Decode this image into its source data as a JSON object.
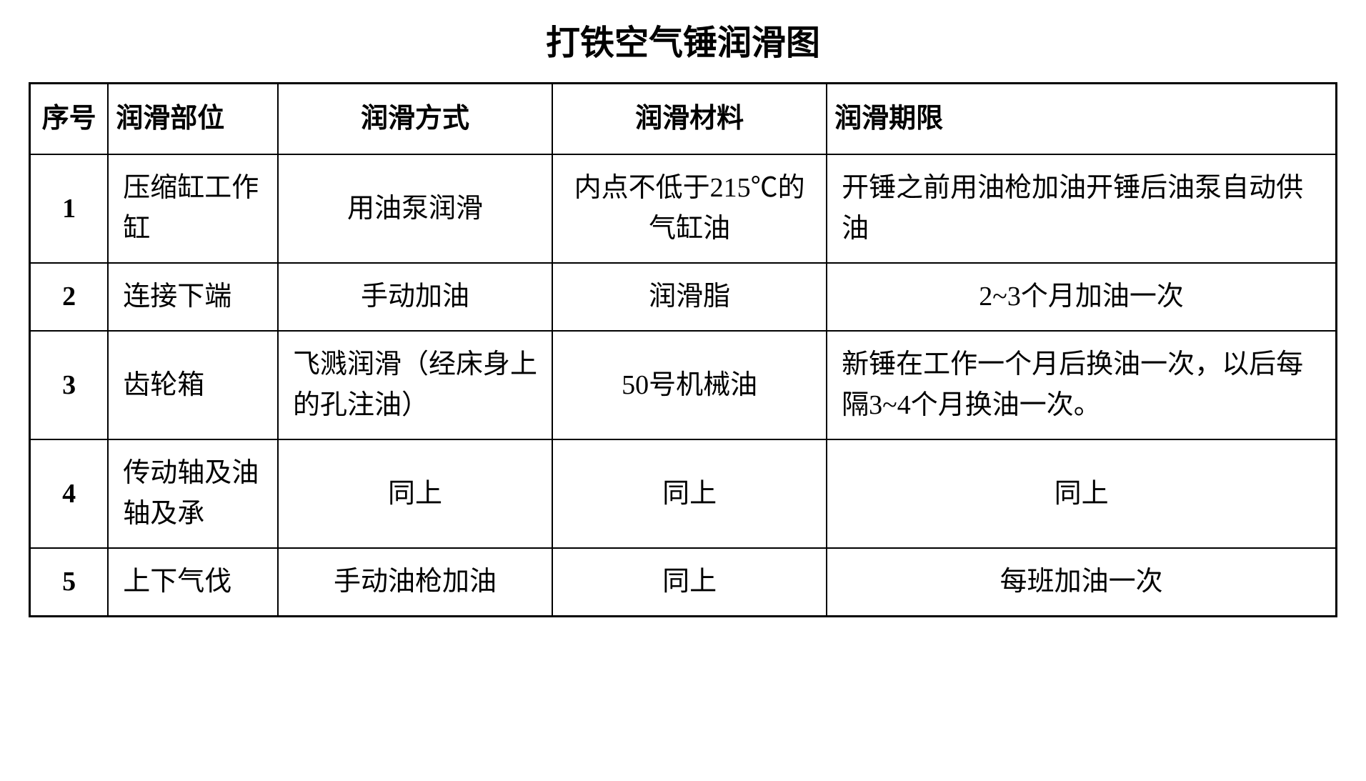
{
  "title": "打铁空气锤润滑图",
  "table": {
    "headers": {
      "num": "序号",
      "part": "润滑部位",
      "method": "润滑方式",
      "material": "润滑材料",
      "period": "润滑期限"
    },
    "rows": [
      {
        "num": "1",
        "part": "压缩缸工作缸",
        "method": "用油泵润滑",
        "material": "内点不低于215℃的气缸油",
        "period": "开锤之前用油枪加油开锤后油泵自动供油",
        "method_align": "center",
        "material_align": "center",
        "period_align": "left"
      },
      {
        "num": "2",
        "part": "连接下端",
        "method": "手动加油",
        "material": "润滑脂",
        "period": "2~3个月加油一次",
        "method_align": "center",
        "material_align": "center",
        "period_align": "center"
      },
      {
        "num": "3",
        "part": "齿轮箱",
        "method": "飞溅润滑（经床身上的孔注油）",
        "material": "50号机械油",
        "period": "新锤在工作一个月后换油一次，以后每隔3~4个月换油一次。",
        "method_align": "left",
        "material_align": "center",
        "period_align": "left"
      },
      {
        "num": "4",
        "part": "传动轴及油轴及承",
        "method": "同上",
        "material": "同上",
        "period": "同上",
        "method_align": "center",
        "material_align": "center",
        "period_align": "center"
      },
      {
        "num": "5",
        "part": "上下气伐",
        "method": "手动油枪加油",
        "material": "同上",
        "period": "每班加油一次",
        "method_align": "center",
        "material_align": "center",
        "period_align": "center"
      }
    ]
  },
  "styling": {
    "background_color": "#ffffff",
    "text_color": "#000000",
    "border_color": "#000000",
    "title_fontsize": 48,
    "cell_fontsize": 38,
    "font_family": "SimSun",
    "border_width_outer": 3,
    "border_width_inner": 2
  }
}
